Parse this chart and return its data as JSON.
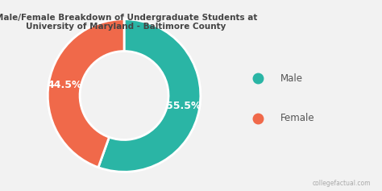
{
  "title": "Male/Female Breakdown of Undergraduate Students at\nUniversity of Maryland - Baltimore County",
  "slices": [
    55.5,
    44.5
  ],
  "labels": [
    "Male",
    "Female"
  ],
  "colors": [
    "#2ab5a5",
    "#f0694a"
  ],
  "autopct_labels": [
    "55.5%",
    "44.5%"
  ],
  "legend_labels": [
    "Male",
    "Female"
  ],
  "donut_width": 0.42,
  "background_color": "#f2f2f2",
  "title_fontsize": 7.5,
  "label_fontsize": 9,
  "legend_fontsize": 8.5,
  "watermark": "collegefactual.com",
  "startangle": 90
}
